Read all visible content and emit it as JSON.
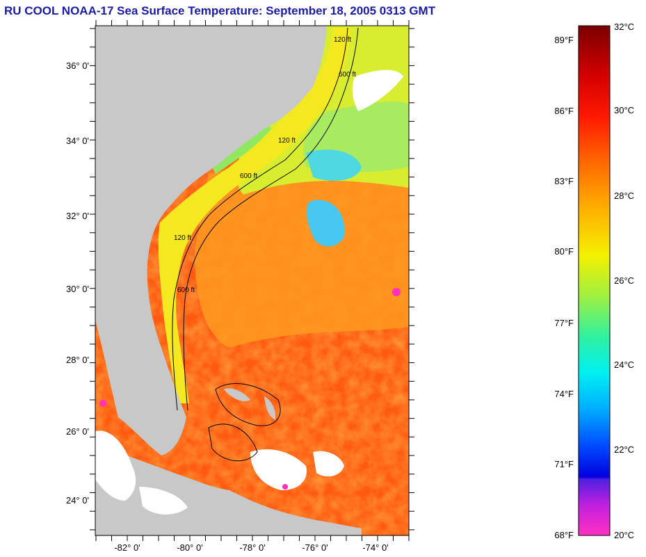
{
  "title": "RU COOL  NOAA-17  Sea Surface Temperature:  September 18, 2005 0313 GMT",
  "map": {
    "lat_labels": [
      "36° 0'",
      "34° 0'",
      "32° 0'",
      "30° 0'",
      "28° 0'",
      "26° 0'",
      "24° 0'"
    ],
    "lon_labels": [
      "-82° 0'",
      "-80° 0'",
      "-78° 0'",
      "-76° 0'",
      "-74° 0'"
    ],
    "contour_labels": [
      "120 ft",
      "600 ft",
      "120 ft",
      "600 ft",
      "120 ft",
      "600 ft"
    ],
    "colors": {
      "land": "#c8c8c8",
      "cloud": "#ffffff",
      "warm": "#ff5a10",
      "shelf": "#f0f020",
      "cool": "#40d0f0"
    }
  },
  "colorbar": {
    "fahrenheit_labels": [
      "89°F",
      "86°F",
      "83°F",
      "80°F",
      "77°F",
      "74°F",
      "71°F",
      "68°F"
    ],
    "celsius_labels": [
      "32°C",
      "30°C",
      "28°C",
      "26°C",
      "24°C",
      "22°C",
      "20°C"
    ]
  }
}
